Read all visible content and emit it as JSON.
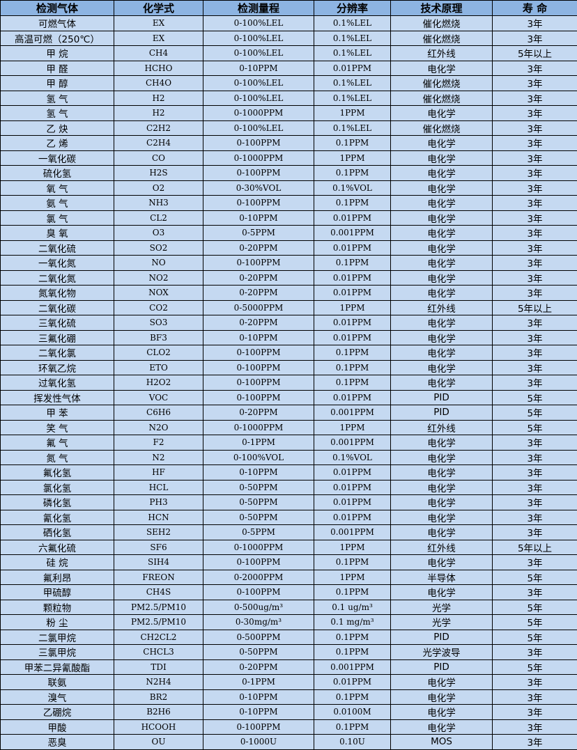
{
  "headers": [
    "检测气体",
    "化学式",
    "检测量程",
    "分辨率",
    "技术原理",
    "寿 命"
  ],
  "rows": [
    [
      "可燃气体",
      "EX",
      "0-100%LEL",
      "0.1%LEL",
      "催化燃烧",
      "3年"
    ],
    [
      "高温可燃（250℃）",
      "EX",
      "0-100%LEL",
      "0.1%LEL",
      "催化燃烧",
      "3年"
    ],
    [
      "甲 烷",
      "CH4",
      "0-100%LEL",
      "0.1%LEL",
      "红外线",
      "5年以上"
    ],
    [
      "甲 醛",
      "HCHO",
      "0-10PPM",
      "0.01PPM",
      "电化学",
      "3年"
    ],
    [
      "甲 醇",
      "CH4O",
      "0-100%LEL",
      "0.1%LEL",
      "催化燃烧",
      "3年"
    ],
    [
      "氢 气",
      "H2",
      "0-100%LEL",
      "0.1%LEL",
      "催化燃烧",
      "3年"
    ],
    [
      "氢 气",
      "H2",
      "0-1000PPM",
      "1PPM",
      "电化学",
      "3年"
    ],
    [
      "乙 炔",
      "C2H2",
      "0-100%LEL",
      "0.1%LEL",
      "催化燃烧",
      "3年"
    ],
    [
      "乙 烯",
      "C2H4",
      "0-100PPM",
      "0.1PPM",
      "电化学",
      "3年"
    ],
    [
      "一氧化碳",
      "CO",
      "0-1000PPM",
      "1PPM",
      "电化学",
      "3年"
    ],
    [
      "硫化氢",
      "H2S",
      "0-100PPM",
      "0.1PPM",
      "电化学",
      "3年"
    ],
    [
      "氧 气",
      "O2",
      "0-30%VOL",
      "0.1%VOL",
      "电化学",
      "3年"
    ],
    [
      "氨 气",
      "NH3",
      "0-100PPM",
      "0.1PPM",
      "电化学",
      "3年"
    ],
    [
      "氯 气",
      "CL2",
      "0-10PPM",
      "0.01PPM",
      "电化学",
      "3年"
    ],
    [
      "臭 氧",
      "O3",
      "0-5PPM",
      "0.001PPM",
      "电化学",
      "3年"
    ],
    [
      "二氧化硫",
      "SO2",
      "0-20PPM",
      "0.01PPM",
      "电化学",
      "3年"
    ],
    [
      "一氧化氮",
      "NO",
      "0-100PPM",
      "0.1PPM",
      "电化学",
      "3年"
    ],
    [
      "二氧化氮",
      "NO2",
      "0-20PPM",
      "0.01PPM",
      "电化学",
      "3年"
    ],
    [
      "氮氧化物",
      "NOX",
      "0-20PPM",
      "0.01PPM",
      "电化学",
      "3年"
    ],
    [
      "二氧化碳",
      "CO2",
      "0-5000PPM",
      "1PPM",
      "红外线",
      "5年以上"
    ],
    [
      "三氧化硫",
      "SO3",
      "0-20PPM",
      "0.01PPM",
      "电化学",
      "3年"
    ],
    [
      "三氟化硼",
      "BF3",
      "0-10PPM",
      "0.01PPM",
      "电化学",
      "3年"
    ],
    [
      "二氧化氯",
      "CLO2",
      "0-100PPM",
      "0.1PPM",
      "电化学",
      "3年"
    ],
    [
      "环氧乙烷",
      "ETO",
      "0-100PPM",
      "0.1PPM",
      "电化学",
      "3年"
    ],
    [
      "过氧化氢",
      "H2O2",
      "0-100PPM",
      "0.1PPM",
      "电化学",
      "3年"
    ],
    [
      "挥发性气体",
      "VOC",
      "0-100PPM",
      "0.01PPM",
      "PID",
      "5年"
    ],
    [
      "甲 苯",
      "C6H6",
      "0-20PPM",
      "0.001PPM",
      "PID",
      "5年"
    ],
    [
      "笑 气",
      "N2O",
      "0-1000PPM",
      "1PPM",
      "红外线",
      "5年"
    ],
    [
      "氟 气",
      "F2",
      "0-1PPM",
      "0.001PPM",
      "电化学",
      "3年"
    ],
    [
      "氮 气",
      "N2",
      "0-100%VOL",
      "0.1%VOL",
      "电化学",
      "3年"
    ],
    [
      "氟化氢",
      "HF",
      "0-10PPM",
      "0.01PPM",
      "电化学",
      "3年"
    ],
    [
      "氯化氢",
      "HCL",
      "0-50PPM",
      "0.01PPM",
      "电化学",
      "3年"
    ],
    [
      "磷化氢",
      "PH3",
      "0-50PPM",
      "0.01PPM",
      "电化学",
      "3年"
    ],
    [
      "氰化氢",
      "HCN",
      "0-50PPM",
      "0.01PPM",
      "电化学",
      "3年"
    ],
    [
      "硒化氢",
      "SEH2",
      "0-5PPM",
      "0.001PPM",
      "电化学",
      "3年"
    ],
    [
      "六氟化硫",
      "SF6",
      "0-1000PPM",
      "1PPM",
      "红外线",
      "5年以上"
    ],
    [
      "硅 烷",
      "SIH4",
      "0-100PPM",
      "0.1PPM",
      "电化学",
      "3年"
    ],
    [
      "氟利昂",
      "FREON",
      "0-2000PPM",
      "1PPM",
      "半导体",
      "5年"
    ],
    [
      "甲硫醇",
      "CH4S",
      "0-100PPM",
      "0.1PPM",
      "电化学",
      "3年"
    ],
    [
      "颗粒物",
      "PM2.5/PM10",
      "0-500ug/m³",
      "0.1 ug/m³",
      "光学",
      "5年"
    ],
    [
      "粉 尘",
      "PM2.5/PM10",
      "0-30mg/m³",
      "0.1 mg/m³",
      "光学",
      "5年"
    ],
    [
      "二氯甲烷",
      "CH2CL2",
      "0-500PPM",
      "0.1PPM",
      "PID",
      "5年"
    ],
    [
      "三氯甲烷",
      "CHCL3",
      "0-50PPM",
      "0.1PPM",
      "光学波导",
      "3年"
    ],
    [
      "甲苯二异氰酸酯",
      "TDI",
      "0-20PPM",
      "0.001PPM",
      "PID",
      "5年"
    ],
    [
      "联氨",
      "N2H4",
      "0-1PPM",
      "0.01PPM",
      "电化学",
      "3年"
    ],
    [
      "溴气",
      "BR2",
      "0-10PPM",
      "0.1PPM",
      "电化学",
      "3年"
    ],
    [
      "乙硼烷",
      "B2H6",
      "0-10PPM",
      "0.0100M",
      "电化学",
      "3年"
    ],
    [
      "甲酸",
      "HCOOH",
      "0-100PPM",
      "0.1PPM",
      "电化学",
      "3年"
    ],
    [
      "恶臭",
      "OU",
      "0-1000U",
      "0.10U",
      "MOS",
      "3年"
    ]
  ],
  "colors": {
    "header_bg": "#8db4e2",
    "row_bg": "#c5d9f1",
    "border": "#000000"
  }
}
